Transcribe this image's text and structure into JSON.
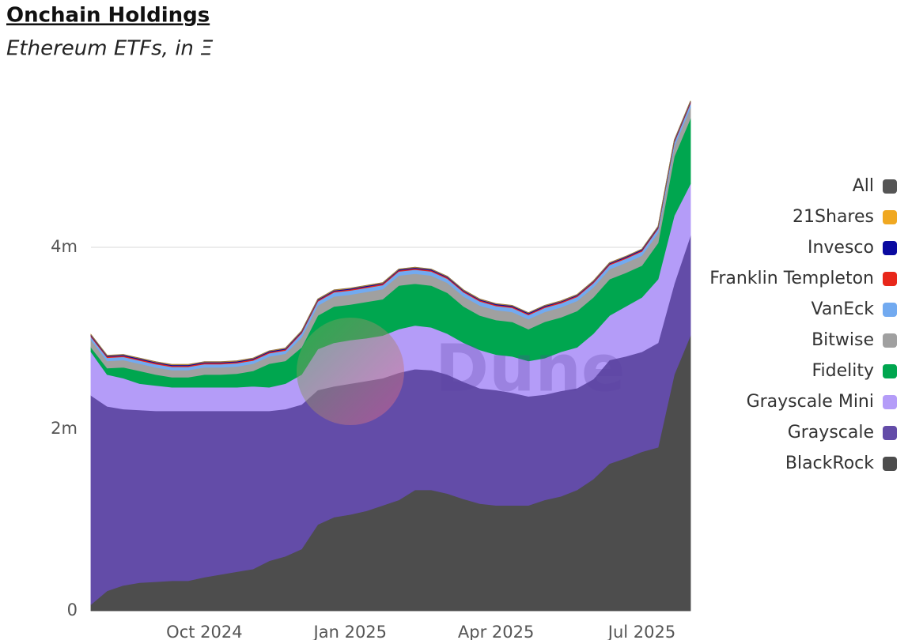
{
  "chart_data": {
    "type": "area",
    "stacked": true,
    "title": "Onchain Holdings",
    "subtitle": "Ethereum ETFs, in Ξ",
    "watermark": "Dune",
    "categories": [
      null,
      null,
      null,
      null,
      null,
      null,
      null,
      "Oct 2024",
      null,
      null,
      null,
      null,
      null,
      null,
      null,
      null,
      "Jan 2025",
      null,
      null,
      null,
      null,
      null,
      null,
      null,
      null,
      "Apr 2025",
      null,
      null,
      null,
      null,
      null,
      null,
      null,
      null,
      "Jul 2025",
      null,
      null,
      null
    ],
    "ylim": [
      0,
      5800000
    ],
    "yticks": [
      0,
      {
        "value": 2000000,
        "label": "2m"
      },
      {
        "value": 4000000,
        "label": "4m"
      }
    ],
    "grid": true,
    "legend": "right",
    "series": [
      {
        "name": "All",
        "type": "line",
        "color": "#555555",
        "values": [
          3041000,
          2811000,
          2821000,
          2781000,
          2741000,
          2711000,
          2711000,
          2741000,
          2741000,
          2751000,
          2781000,
          2861000,
          2891000,
          3081000,
          3431000,
          3531000,
          3551000,
          3581000,
          3611000,
          3761000,
          3781000,
          3761000,
          3681000,
          3531000,
          3431000,
          3381000,
          3361000,
          3281000,
          3361000,
          3411000,
          3481000,
          3631000,
          3831000,
          3901000,
          3981000,
          4231000,
          5181000,
          5611000
        ]
      },
      {
        "name": "21Shares",
        "color": "#f0a821",
        "values": [
          4000,
          4000,
          4000,
          4000,
          4000,
          4000,
          4000,
          4000,
          4000,
          4000,
          4000,
          4000,
          4000,
          4000,
          4000,
          4000,
          4000,
          4000,
          4000,
          4000,
          4000,
          4000,
          4000,
          4000,
          4000,
          4000,
          4000,
          4000,
          4000,
          4000,
          4000,
          4000,
          4000,
          4000,
          4000,
          4000,
          4000,
          4000
        ]
      },
      {
        "name": "Invesco",
        "color": "#0a0aa0",
        "values": [
          10000,
          10000,
          10000,
          10000,
          10000,
          10000,
          10000,
          10000,
          10000,
          10000,
          10000,
          10000,
          10000,
          10000,
          10000,
          10000,
          10000,
          10000,
          10000,
          10000,
          10000,
          10000,
          10000,
          10000,
          10000,
          10000,
          10000,
          10000,
          10000,
          10000,
          10000,
          10000,
          10000,
          10000,
          10000,
          10000,
          10000,
          10000
        ]
      },
      {
        "name": "Franklin Templeton",
        "color": "#e8271a",
        "values": [
          12000,
          12000,
          12000,
          12000,
          12000,
          12000,
          12000,
          12000,
          12000,
          12000,
          12000,
          12000,
          12000,
          12000,
          12000,
          12000,
          12000,
          12000,
          12000,
          12000,
          12000,
          12000,
          12000,
          12000,
          12000,
          12000,
          12000,
          12000,
          12000,
          12000,
          12000,
          12000,
          12000,
          12000,
          12000,
          12000,
          12000,
          12000
        ]
      },
      {
        "name": "VanEck",
        "color": "#72aaf0",
        "values": [
          35000,
          35000,
          35000,
          35000,
          35000,
          35000,
          35000,
          35000,
          35000,
          35000,
          35000,
          35000,
          35000,
          45000,
          45000,
          45000,
          45000,
          45000,
          45000,
          45000,
          45000,
          45000,
          45000,
          45000,
          45000,
          45000,
          45000,
          45000,
          45000,
          45000,
          45000,
          45000,
          45000,
          45000,
          45000,
          45000,
          45000,
          45000
        ]
      },
      {
        "name": "Bitwise",
        "color": "#a0a0a0",
        "values": [
          80000,
          80000,
          80000,
          80000,
          80000,
          80000,
          80000,
          80000,
          80000,
          80000,
          80000,
          80000,
          80000,
          110000,
          110000,
          110000,
          110000,
          110000,
          110000,
          110000,
          110000,
          110000,
          110000,
          110000,
          110000,
          110000,
          110000,
          110000,
          110000,
          110000,
          110000,
          110000,
          110000,
          110000,
          110000,
          110000,
          110000,
          120000
        ]
      },
      {
        "name": "Fidelity",
        "color": "#00a64f",
        "values": [
          50000,
          70000,
          120000,
          140000,
          120000,
          110000,
          110000,
          140000,
          140000,
          150000,
          170000,
          260000,
          250000,
          300000,
          370000,
          400000,
          390000,
          400000,
          400000,
          480000,
          460000,
          460000,
          450000,
          400000,
          380000,
          380000,
          380000,
          350000,
          400000,
          380000,
          400000,
          400000,
          400000,
          370000,
          350000,
          400000,
          650000,
          720000
        ]
      },
      {
        "name": "Grayscale Mini",
        "color": "#b49cf8",
        "values": [
          480000,
          350000,
          340000,
          290000,
          280000,
          260000,
          260000,
          260000,
          260000,
          260000,
          270000,
          260000,
          280000,
          330000,
          450000,
          480000,
          480000,
          470000,
          470000,
          480000,
          480000,
          470000,
          450000,
          430000,
          420000,
          390000,
          400000,
          390000,
          400000,
          430000,
          450000,
          500000,
          490000,
          550000,
          600000,
          700000,
          750000,
          570000
        ]
      },
      {
        "name": "Grayscale",
        "color": "#634ca8",
        "values": [
          2300000,
          2030000,
          1940000,
          1900000,
          1880000,
          1870000,
          1870000,
          1830000,
          1800000,
          1770000,
          1740000,
          1650000,
          1620000,
          1590000,
          1480000,
          1440000,
          1440000,
          1430000,
          1400000,
          1400000,
          1330000,
          1320000,
          1310000,
          1290000,
          1270000,
          1270000,
          1240000,
          1200000,
          1160000,
          1160000,
          1120000,
          1100000,
          1140000,
          1120000,
          1100000,
          1150000,
          1000000,
          1100000
        ]
      },
      {
        "name": "BlackRock",
        "color": "#4d4d4d",
        "values": [
          70000,
          220000,
          280000,
          310000,
          320000,
          330000,
          330000,
          370000,
          400000,
          430000,
          460000,
          550000,
          600000,
          680000,
          950000,
          1030000,
          1060000,
          1100000,
          1160000,
          1220000,
          1330000,
          1330000,
          1290000,
          1230000,
          1180000,
          1160000,
          1160000,
          1160000,
          1220000,
          1260000,
          1330000,
          1450000,
          1620000,
          1680000,
          1750000,
          1800000,
          2600000,
          3030000
        ]
      }
    ]
  }
}
